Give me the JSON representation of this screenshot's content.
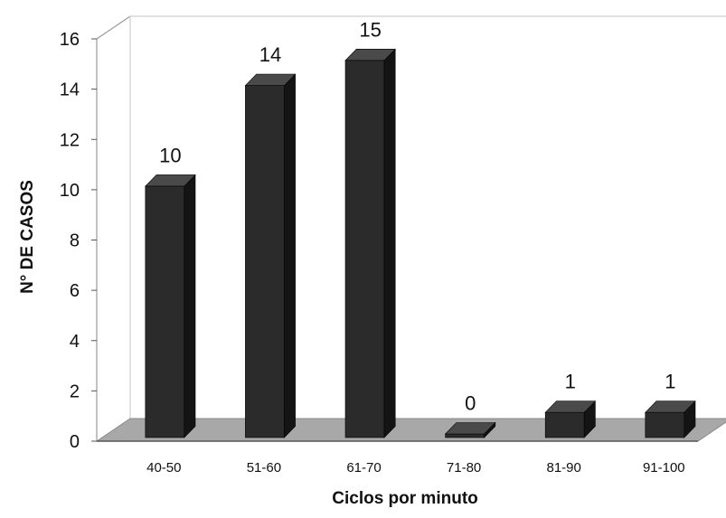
{
  "chart_data": {
    "type": "bar",
    "style": "3d-column",
    "categories": [
      "40-50",
      "51-60",
      "61-70",
      "71-80",
      "81-90",
      "91-100"
    ],
    "values": [
      10,
      14,
      15,
      0,
      1,
      1
    ],
    "data_labels": [
      "10",
      "14",
      "15",
      "0",
      "1",
      "1"
    ],
    "y_ticks": [
      "0",
      "2",
      "4",
      "6",
      "8",
      "10",
      "12",
      "14",
      "16"
    ],
    "ylim": [
      0,
      16
    ],
    "xlabel": "Ciclos por minuto",
    "ylabel": "N° DE CASOS",
    "grid": false,
    "legend": "none",
    "colors": {
      "bar_front": "#2b2b2b",
      "bar_top": "#4a4a4a",
      "bar_side": "#141414",
      "floor": "#a8a8a8",
      "wall_line": "#9a9a9a",
      "axis": "#555555"
    }
  }
}
